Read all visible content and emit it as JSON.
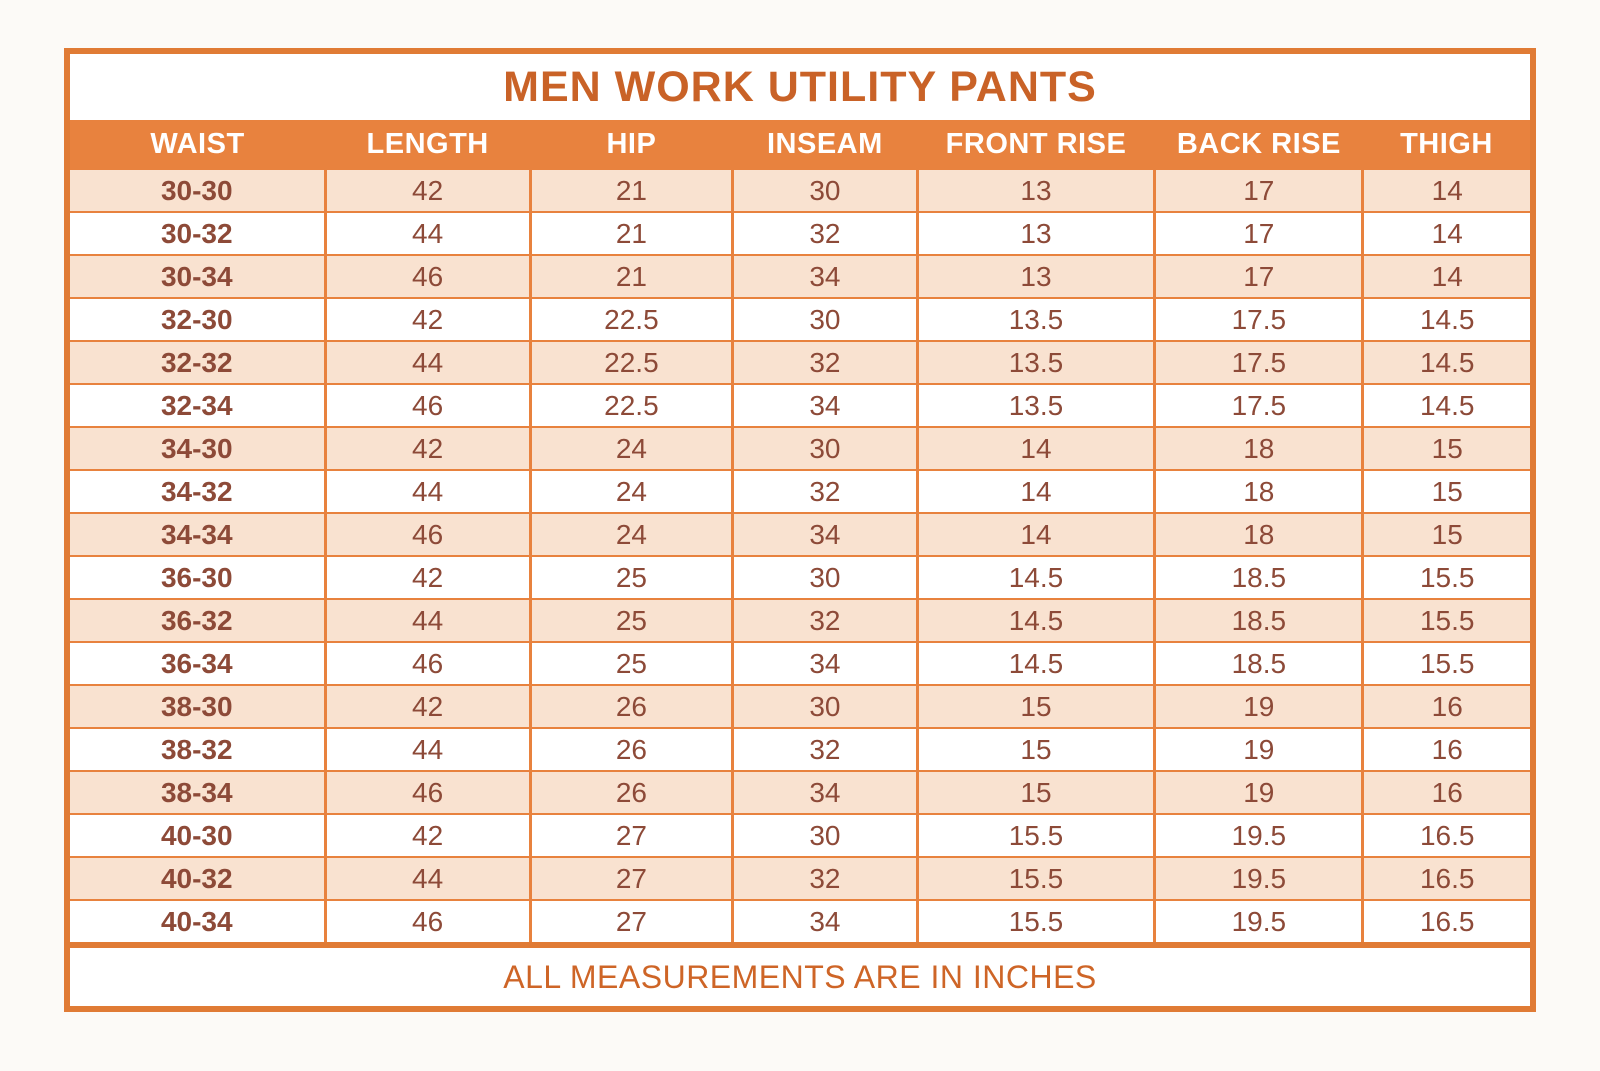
{
  "chart_data": {
    "type": "table",
    "title": "MEN WORK UTILITY PANTS",
    "columns": [
      "WAIST",
      "LENGTH",
      "HIP",
      "INSEAM",
      "FRONT RISE",
      "BACK RISE",
      "THIGH"
    ],
    "rows": [
      [
        "30-30",
        "42",
        "21",
        "30",
        "13",
        "17",
        "14"
      ],
      [
        "30-32",
        "44",
        "21",
        "32",
        "13",
        "17",
        "14"
      ],
      [
        "30-34",
        "46",
        "21",
        "34",
        "13",
        "17",
        "14"
      ],
      [
        "32-30",
        "42",
        "22.5",
        "30",
        "13.5",
        "17.5",
        "14.5"
      ],
      [
        "32-32",
        "44",
        "22.5",
        "32",
        "13.5",
        "17.5",
        "14.5"
      ],
      [
        "32-34",
        "46",
        "22.5",
        "34",
        "13.5",
        "17.5",
        "14.5"
      ],
      [
        "34-30",
        "42",
        "24",
        "30",
        "14",
        "18",
        "15"
      ],
      [
        "34-32",
        "44",
        "24",
        "32",
        "14",
        "18",
        "15"
      ],
      [
        "34-34",
        "46",
        "24",
        "34",
        "14",
        "18",
        "15"
      ],
      [
        "36-30",
        "42",
        "25",
        "30",
        "14.5",
        "18.5",
        "15.5"
      ],
      [
        "36-32",
        "44",
        "25",
        "32",
        "14.5",
        "18.5",
        "15.5"
      ],
      [
        "36-34",
        "46",
        "25",
        "34",
        "14.5",
        "18.5",
        "15.5"
      ],
      [
        "38-30",
        "42",
        "26",
        "30",
        "15",
        "19",
        "16"
      ],
      [
        "38-32",
        "44",
        "26",
        "32",
        "15",
        "19",
        "16"
      ],
      [
        "38-34",
        "46",
        "26",
        "34",
        "15",
        "19",
        "16"
      ],
      [
        "40-30",
        "42",
        "27",
        "30",
        "15.5",
        "19.5",
        "16.5"
      ],
      [
        "40-32",
        "44",
        "27",
        "32",
        "15.5",
        "19.5",
        "16.5"
      ],
      [
        "40-34",
        "46",
        "27",
        "34",
        "15.5",
        "19.5",
        "16.5"
      ]
    ],
    "note": "ALL MEASUREMENTS ARE IN INCHES",
    "layout": {
      "grid": "on",
      "row_striping": "odd rows shaded peach, even rows white",
      "header_position": "top"
    },
    "colors": {
      "header_background": "#E8823E",
      "header_text": "#FFFFFF",
      "title_text": "#C96227",
      "footer_text": "#CE6527",
      "cell_text": "#8D4A38",
      "striped_row_background": "#F9E2D0",
      "plain_row_background": "#FFFFFF",
      "border": "#E07B35",
      "page_background": "#FCFAF7"
    }
  }
}
